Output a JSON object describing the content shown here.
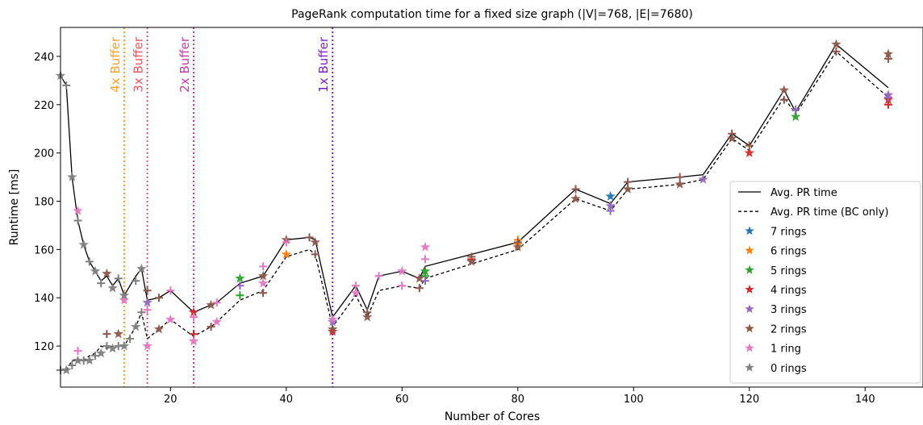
{
  "chart_data": {
    "type": "line",
    "title": "PageRank computation time for a fixed size graph (|V|=768, |E|=7680)",
    "xlabel": "Number of Cores",
    "ylabel": "Runtime [ms]",
    "xlim": [
      1,
      150
    ],
    "ylim": [
      103,
      252
    ],
    "xticks": [
      20,
      40,
      60,
      80,
      100,
      120,
      140
    ],
    "yticks": [
      120,
      140,
      160,
      180,
      200,
      220,
      240
    ],
    "grid": false,
    "legend_position": "lower-right",
    "vlines": [
      {
        "x": 12,
        "label": "4x Buffer",
        "color": "#ff9f2e"
      },
      {
        "x": 16,
        "label": "3x Buffer",
        "color": "#f0585f"
      },
      {
        "x": 24,
        "label": "2x Buffer",
        "color": "#c83aa6"
      },
      {
        "x": 48,
        "label": "1x Buffer",
        "color": "#7d22c9"
      }
    ],
    "series": [
      {
        "name": "Avg. PR time",
        "style": "solid",
        "color": "#000000",
        "x": [
          1,
          2,
          3,
          4,
          5,
          6,
          7,
          8,
          9,
          10,
          11,
          12,
          13,
          14,
          15,
          16,
          18,
          20,
          24,
          27,
          28,
          32,
          36,
          40,
          44,
          45,
          48,
          52,
          54,
          56,
          60,
          63,
          64,
          72,
          80,
          90,
          96,
          99,
          108,
          112,
          117,
          120,
          126,
          128,
          135,
          144
        ],
        "y": [
          232,
          228,
          190,
          172,
          162,
          155,
          151,
          147,
          149,
          145,
          148,
          141,
          145,
          149,
          152,
          139,
          140,
          143,
          134,
          137,
          138,
          146,
          149,
          164,
          165,
          164,
          132,
          145,
          135,
          149,
          151,
          148,
          153,
          158,
          163,
          185,
          179,
          188,
          190,
          191,
          208,
          203,
          226,
          217,
          245,
          227
        ]
      },
      {
        "name": "Avg. PR time (BC only)",
        "style": "dashed",
        "color": "#000000",
        "x": [
          1,
          2,
          3,
          4,
          5,
          6,
          7,
          8,
          9,
          10,
          11,
          12,
          13,
          14,
          15,
          16,
          18,
          20,
          24,
          27,
          28,
          32,
          36,
          40,
          44,
          45,
          48,
          52,
          54,
          56,
          60,
          63,
          64,
          72,
          80,
          90,
          96,
          99,
          108,
          112,
          117,
          120,
          126,
          128,
          135,
          144
        ],
        "y": [
          110,
          110,
          114,
          114,
          114,
          116,
          117,
          120,
          119,
          120,
          120,
          120,
          124,
          128,
          134,
          123,
          127,
          131,
          124,
          128,
          130,
          139,
          143,
          157,
          160,
          158,
          128,
          141,
          132,
          143,
          145,
          144,
          148,
          154,
          160,
          181,
          176,
          185,
          187,
          189,
          206,
          201,
          223,
          216,
          242,
          223
        ]
      }
    ],
    "marker_series": [
      {
        "name": "7 rings",
        "color": "#1f77b4",
        "points": [
          [
            96,
            182
          ]
        ]
      },
      {
        "name": "6 rings",
        "color": "#ff7f0e",
        "points": [
          [
            40,
            158
          ],
          [
            80,
            164
          ],
          [
            80,
            162
          ]
        ]
      },
      {
        "name": "5 rings",
        "color": "#2ca02c",
        "points": [
          [
            32,
            148
          ],
          [
            32,
            141
          ],
          [
            64,
            151
          ],
          [
            64,
            149
          ],
          [
            128,
            215
          ]
        ]
      },
      {
        "name": "4 rings",
        "color": "#d62728",
        "points": [
          [
            24,
            134
          ],
          [
            24,
            125
          ],
          [
            48,
            126
          ],
          [
            72,
            156
          ],
          [
            120,
            200
          ],
          [
            144,
            220
          ],
          [
            144,
            222
          ]
        ]
      },
      {
        "name": "3 rings",
        "color": "#9467bd",
        "points": [
          [
            16,
            138
          ],
          [
            32,
            145
          ],
          [
            48,
            130
          ],
          [
            64,
            147
          ],
          [
            96,
            178
          ],
          [
            96,
            176
          ],
          [
            112,
            189
          ],
          [
            128,
            218
          ],
          [
            144,
            224
          ],
          [
            144,
            223
          ]
        ]
      },
      {
        "name": "2 rings",
        "color": "#8c564b",
        "points": [
          [
            9,
            150
          ],
          [
            9,
            125
          ],
          [
            11,
            125
          ],
          [
            16,
            143
          ],
          [
            18,
            127
          ],
          [
            18,
            140
          ],
          [
            27,
            137
          ],
          [
            27,
            128
          ],
          [
            36,
            149
          ],
          [
            36,
            142
          ],
          [
            40,
            164
          ],
          [
            44,
            165
          ],
          [
            45,
            163
          ],
          [
            45,
            158
          ],
          [
            48,
            127
          ],
          [
            54,
            134
          ],
          [
            54,
            132
          ],
          [
            63,
            144
          ],
          [
            63,
            148
          ],
          [
            72,
            157
          ],
          [
            72,
            155
          ],
          [
            80,
            163
          ],
          [
            80,
            161
          ],
          [
            90,
            185
          ],
          [
            90,
            181
          ],
          [
            99,
            188
          ],
          [
            99,
            185
          ],
          [
            108,
            190
          ],
          [
            108,
            187
          ],
          [
            117,
            208
          ],
          [
            117,
            206
          ],
          [
            120,
            203
          ],
          [
            126,
            226
          ],
          [
            126,
            222
          ],
          [
            135,
            245
          ],
          [
            135,
            242
          ],
          [
            144,
            241
          ],
          [
            144,
            239
          ]
        ]
      },
      {
        "name": "1 ring",
        "color": "#e377c2",
        "points": [
          [
            4,
            176
          ],
          [
            4,
            118
          ],
          [
            12,
            139
          ],
          [
            16,
            135
          ],
          [
            16,
            120
          ],
          [
            20,
            143
          ],
          [
            20,
            131
          ],
          [
            24,
            132
          ],
          [
            24,
            122
          ],
          [
            28,
            138
          ],
          [
            28,
            130
          ],
          [
            36,
            153
          ],
          [
            36,
            146
          ],
          [
            40,
            163
          ],
          [
            48,
            131
          ],
          [
            52,
            145
          ],
          [
            52,
            142
          ],
          [
            56,
            149
          ],
          [
            60,
            151
          ],
          [
            60,
            145
          ],
          [
            64,
            161
          ],
          [
            64,
            156
          ]
        ]
      },
      {
        "name": "0 rings",
        "color": "#7f7f7f",
        "points": [
          [
            1,
            232
          ],
          [
            2,
            228
          ],
          [
            3,
            190
          ],
          [
            4,
            172
          ],
          [
            5,
            162
          ],
          [
            6,
            155
          ],
          [
            7,
            151
          ],
          [
            8,
            146
          ],
          [
            10,
            144
          ],
          [
            11,
            148
          ],
          [
            12,
            141
          ],
          [
            14,
            147
          ],
          [
            15,
            152
          ],
          [
            1,
            110
          ],
          [
            2,
            110
          ],
          [
            3,
            112
          ],
          [
            4,
            114
          ],
          [
            5,
            114
          ],
          [
            6,
            114
          ],
          [
            7,
            116
          ],
          [
            8,
            117
          ],
          [
            9,
            120
          ],
          [
            10,
            119
          ],
          [
            11,
            120
          ],
          [
            12,
            120
          ],
          [
            13,
            123
          ],
          [
            14,
            128
          ],
          [
            15,
            134
          ]
        ]
      }
    ],
    "marker_kinds": [
      "star",
      "plus"
    ]
  }
}
